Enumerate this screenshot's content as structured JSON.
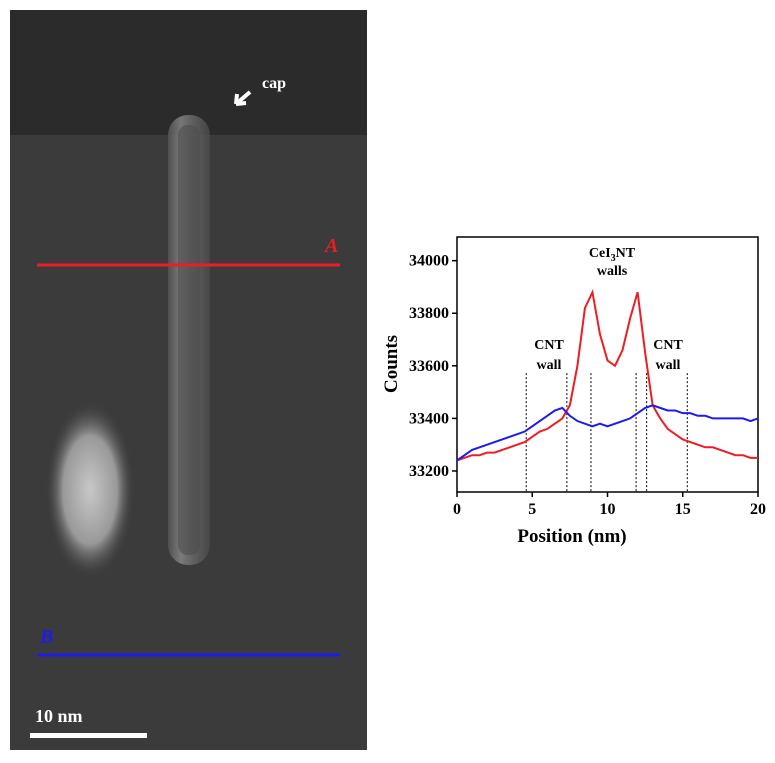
{
  "image": {
    "cap_label": "cap",
    "line_a_label": "A",
    "line_b_label": "B",
    "scale_label": "10 nm"
  },
  "chart_data": {
    "type": "line",
    "xlabel": "Position (nm)",
    "ylabel": "Counts",
    "annotations": {
      "cnt_wall_left": [
        "CNT",
        "wall"
      ],
      "cnt_wall_right": [
        "CNT",
        "wall"
      ],
      "cei3_walls": [
        "CeI",
        "3",
        "NT",
        "walls"
      ]
    },
    "markers": [
      4.6,
      7.3,
      8.9,
      11.9,
      12.6,
      15.3
    ],
    "xlim": [
      0,
      20
    ],
    "xticks": [
      0,
      5,
      10,
      15,
      20
    ],
    "ylim": [
      33120,
      34090
    ],
    "yticks": [
      33200,
      33400,
      33600,
      33800,
      34000
    ],
    "x": [
      0,
      0.5,
      1,
      1.5,
      2,
      2.5,
      3,
      3.5,
      4,
      4.5,
      5,
      5.5,
      6,
      6.5,
      7,
      7.5,
      8,
      8.5,
      9,
      9.5,
      10,
      10.5,
      11,
      11.5,
      12,
      12.5,
      13,
      13.5,
      14,
      14.5,
      15,
      15.5,
      16,
      16.5,
      17,
      17.5,
      18,
      18.5,
      19,
      19.5,
      20
    ],
    "series": [
      {
        "name": "A",
        "color": "#ee1c24",
        "values": [
          33240,
          33250,
          33260,
          33260,
          33270,
          33270,
          33280,
          33290,
          33300,
          33310,
          33330,
          33350,
          33360,
          33380,
          33400,
          33450,
          33600,
          33820,
          33880,
          33720,
          33620,
          33600,
          33660,
          33780,
          33880,
          33650,
          33450,
          33400,
          33360,
          33340,
          33320,
          33310,
          33300,
          33290,
          33290,
          33280,
          33270,
          33260,
          33260,
          33250,
          33250
        ]
      },
      {
        "name": "B",
        "color": "#1c1cee",
        "values": [
          33240,
          33260,
          33280,
          33290,
          33300,
          33310,
          33320,
          33330,
          33340,
          33350,
          33370,
          33390,
          33410,
          33430,
          33440,
          33410,
          33390,
          33380,
          33370,
          33380,
          33370,
          33380,
          33390,
          33400,
          33420,
          33440,
          33450,
          33440,
          33430,
          33430,
          33420,
          33420,
          33410,
          33410,
          33400,
          33400,
          33400,
          33400,
          33400,
          33390,
          33400
        ]
      }
    ]
  }
}
